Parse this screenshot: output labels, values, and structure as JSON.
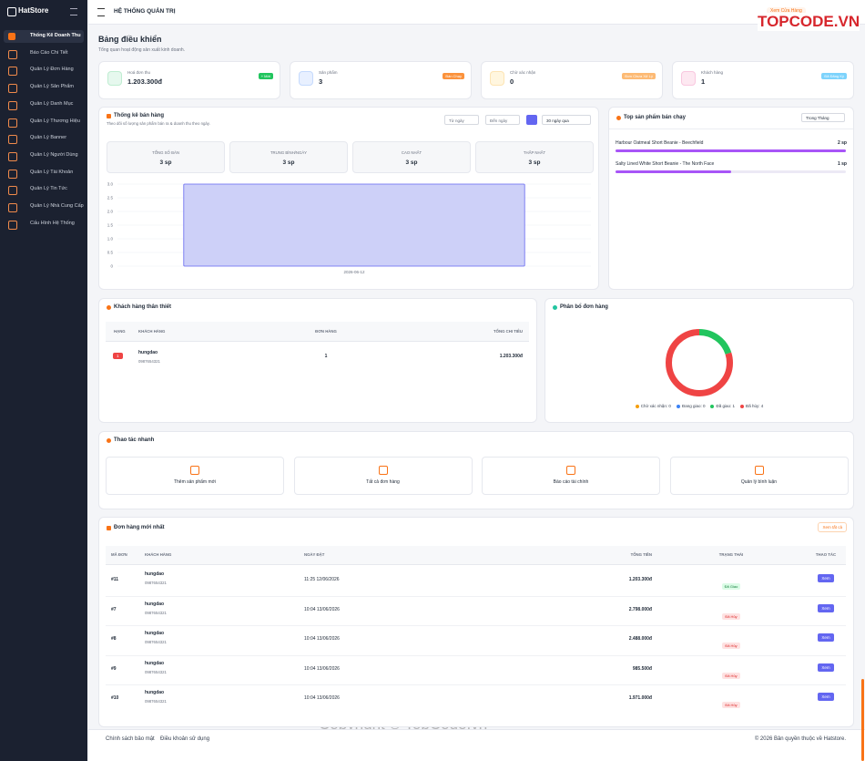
{
  "brand": "HatStore",
  "sidebar": [
    "Thống Kê Doanh Thu",
    "Báo Cáo Chi Tiết",
    "Quản Lý Đơn Hàng",
    "Quản Lý Sản Phẩm",
    "Quản Lý Danh Mục",
    "Quản Lý Thương Hiệu",
    "Quản Lý Banner",
    "Quản Lý Người Dùng",
    "Quản Lý Tài Khoản",
    "Quản Lý Tin Tức",
    "Quản Lý Nhà Cung Cấp",
    "Cấu Hình Hệ Thống"
  ],
  "header": {
    "title": "HỆ THỐNG QUẢN TRỊ",
    "store_link": "Xem Cửa Hàng"
  },
  "watermarks": [
    "TOPCODE.VN",
    "TopCode.vn",
    "Copyright © TopCode.vn"
  ],
  "page": {
    "title": "Bảng điều khiển",
    "subtitle": "Tổng quan hoạt động sản xuất kinh doanh."
  },
  "stats": [
    {
      "label": "Hoá đơn thu",
      "value": "1.203.300đ",
      "badge": "+ Mới"
    },
    {
      "label": "Sản phẩm",
      "value": "3",
      "badge": "Bán Chạy"
    },
    {
      "label": "Chờ xác nhận",
      "value": "0",
      "badge": "Đơn Chưa Xử Lý"
    },
    {
      "label": "Khách hàng",
      "value": "1",
      "badge": "Đã Đăng Ký"
    }
  ],
  "sales": {
    "title": "Thống kê bán hàng",
    "subtitle": "Theo dõi số lượng sản phẩm bán ra & doanh thu theo ngày.",
    "from": "Từ ngày",
    "to": "Đến ngày",
    "range": "30 ngày qua",
    "summary": [
      {
        "label": "TỔNG SỐ BÁN",
        "value": "3 sp"
      },
      {
        "label": "TRUNG BÌNH/NGÀY",
        "value": "3 sp"
      },
      {
        "label": "CAO NHẤT",
        "value": "3 sp"
      },
      {
        "label": "THẤP NHẤT",
        "value": "3 sp"
      }
    ]
  },
  "top_filter": "Trong Tháng",
  "chart_data": [
    {
      "type": "bar",
      "categories": [
        "2026-06-12"
      ],
      "values": [
        3
      ],
      "color": "#cdd0f8",
      "ylim": [
        0,
        3
      ],
      "yticks": [
        0,
        0.5,
        {
          "value": 1,
          "label": "1.0"
        },
        1.5,
        {
          "value": 2,
          "label": "2.0"
        },
        2.5,
        {
          "value": 3,
          "label": "3.0"
        }
      ],
      "grid": true
    },
    {
      "type": "bar",
      "orientation": "horizontal",
      "title": "Top sản phẩm bán chạy",
      "categories": [
        "Harbour Oatmeal Short Beanie - Beechfield",
        "Salty Lined White Short Beanie - The North Face"
      ],
      "values": [
        2,
        1
      ],
      "value_labels": [
        "2 sp",
        "1 sp"
      ],
      "color": "#a855f7"
    },
    {
      "type": "pie",
      "title": "Phân bổ đơn hàng",
      "categories": [
        "Chờ xác nhận",
        "Đang giao",
        "Đã giao",
        "Đã hủy"
      ],
      "values": [
        0,
        0,
        1,
        4
      ],
      "legend_labels": [
        "Chờ xác nhận: 0",
        "Đang giao: 0",
        "Đã giao: 1",
        "Đã hủy: 4"
      ],
      "colors": [
        "#f59e0b",
        "#3b82f6",
        "#22c55e",
        "#ef4444"
      ],
      "legend": "bottom"
    }
  ],
  "customers": {
    "title": "Khách hàng thân thiết",
    "columns": [
      "HẠNG",
      "KHÁCH HÀNG",
      "ĐƠN HÀNG",
      "TỔNG CHI TIÊU"
    ],
    "rows": [
      [
        "1",
        "hungdao",
        "0987654321",
        "1",
        "1.203.300đ"
      ]
    ]
  },
  "quick": {
    "title": "Thao tác nhanh",
    "items": [
      "Thêm sản phẩm mới",
      "Tất cả đơn hàng",
      "Báo cáo tài chính",
      "Quản lý bình luận"
    ]
  },
  "orders": {
    "title": "Đơn hàng mới nhất",
    "view_all": "Xem tất cả",
    "columns": [
      "MÃ ĐƠN",
      "KHÁCH HÀNG",
      "NGÀY ĐẶT",
      "TỔNG TIỀN",
      "TRẠNG THÁI",
      "THAO TÁC"
    ],
    "rows": [
      [
        "#11",
        "hungdao",
        "0987654321",
        "11:25 12/06/2026",
        "1.203.300đ",
        "Đã Giao",
        "Xem"
      ],
      [
        "#7",
        "hungdao",
        "0987654321",
        "10:04 13/06/2026",
        "2.798.000đ",
        "Đã Hủy",
        "Xem"
      ],
      [
        "#8",
        "hungdao",
        "0987654321",
        "10:04 13/06/2026",
        "2.488.000đ",
        "Đã Hủy",
        "Xem"
      ],
      [
        "#9",
        "hungdao",
        "0987654321",
        "10:04 13/06/2026",
        "985.500đ",
        "Đã Hủy",
        "Xem"
      ],
      [
        "#10",
        "hungdao",
        "0987654321",
        "10:04 13/06/2026",
        "1.971.000đ",
        "Đã Hủy",
        "Xem"
      ]
    ]
  },
  "footer": {
    "links": [
      "Chính sách bảo mật",
      "Điều khoản sử dụng"
    ],
    "copyright": "© 2026 Bản quyền thuộc về Hatstore."
  }
}
